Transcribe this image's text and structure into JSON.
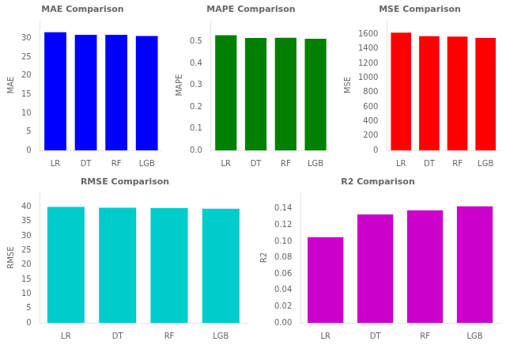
{
  "chart_data": [
    {
      "type": "bar",
      "title": "MAE Comparison",
      "ylabel": "MAE",
      "categories": [
        "LR",
        "DT",
        "RF",
        "LGB"
      ],
      "values": [
        31.7,
        31.0,
        31.0,
        30.7
      ],
      "color": "#0000ff",
      "ylim": [
        0,
        35
      ],
      "yticks": [
        0,
        5,
        10,
        15,
        20,
        25,
        30
      ],
      "grid": false
    },
    {
      "type": "bar",
      "title": "MAPE Comparison",
      "ylabel": "MAPE",
      "categories": [
        "LR",
        "DT",
        "RF",
        "LGB"
      ],
      "values": [
        0.53,
        0.517,
        0.518,
        0.513
      ],
      "color": "#008000",
      "ylim": [
        0,
        0.6
      ],
      "yticks": [
        {
          "value": 0,
          "label": "0.0"
        },
        0.1,
        0.2,
        0.3,
        0.4,
        0.5
      ],
      "grid": false
    },
    {
      "type": "bar",
      "title": "MSE Comparison",
      "ylabel": "MSE",
      "categories": [
        "LR",
        "DT",
        "RF",
        "LGB"
      ],
      "values": [
        1625,
        1575,
        1570,
        1550
      ],
      "color": "#ff0000",
      "ylim": [
        0,
        1800
      ],
      "yticks": [
        0,
        200,
        400,
        600,
        800,
        1000,
        1200,
        1400,
        1600
      ],
      "grid": false
    },
    {
      "type": "bar",
      "title": "RMSE Comparison",
      "ylabel": "RMSE",
      "categories": [
        "LR",
        "DT",
        "RF",
        "LGB"
      ],
      "values": [
        40.0,
        39.7,
        39.6,
        39.4
      ],
      "color": "#00cccc",
      "ylim": [
        0,
        45
      ],
      "yticks": [
        0,
        5,
        10,
        15,
        20,
        25,
        30,
        35,
        40
      ],
      "grid": false
    },
    {
      "type": "bar",
      "title": "R2 Comparison",
      "ylabel": "R2",
      "categories": [
        "LR",
        "DT",
        "RF",
        "LGB"
      ],
      "values": [
        0.105,
        0.133,
        0.138,
        0.143
      ],
      "color": "#cc00cc",
      "ylim": [
        0,
        0.16
      ],
      "yticks": [
        {
          "value": 0,
          "label": "0.00"
        },
        0.02,
        0.04,
        0.06,
        0.08,
        {
          "value": 0.1,
          "label": "0.10"
        },
        0.12,
        0.14
      ],
      "grid": false
    }
  ]
}
